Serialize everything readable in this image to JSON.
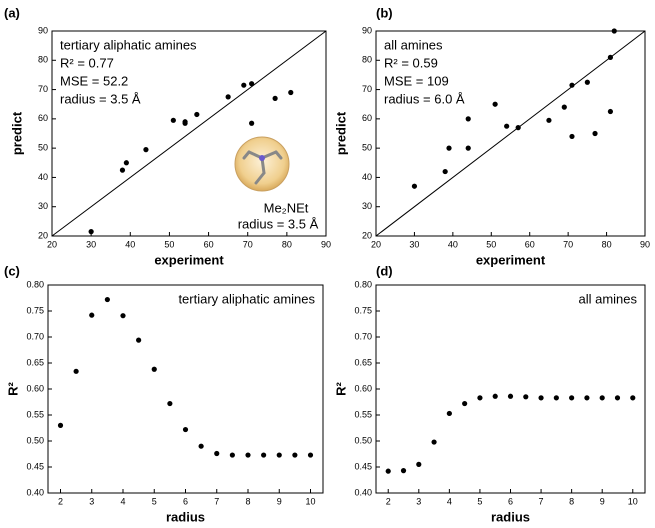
{
  "chart_data": [
    {
      "type": "scatter",
      "label": "(a)",
      "x_label": "experiment",
      "y_label": "predict",
      "x": [
        30,
        38,
        39,
        44,
        51,
        54,
        54,
        57,
        65,
        69,
        71,
        71,
        77,
        81
      ],
      "values": [
        21.5,
        42.5,
        45,
        49.5,
        59.5,
        58.5,
        59,
        61.5,
        67.5,
        71.5,
        72,
        58.5,
        67,
        69
      ],
      "color": "#000000",
      "diagonal": true,
      "xlim": [
        20,
        90
      ],
      "ylim": [
        20,
        90
      ],
      "xticks": [
        20,
        30,
        40,
        50,
        60,
        70,
        80,
        90
      ],
      "yticks": [
        20,
        30,
        40,
        50,
        60,
        70,
        80,
        90
      ],
      "annotations": [
        "tertiary aliphatic amines",
        "R² = 0.77",
        "MSE = 52.2",
        "radius = 3.5 Å",
        "Me₂NEt",
        "radius = 3.5 Å"
      ]
    },
    {
      "type": "scatter",
      "label": "(b)",
      "x_label": "experiment",
      "y_label": "predict",
      "x": [
        30,
        38,
        39,
        44,
        44,
        51,
        54,
        57,
        65,
        69,
        71,
        71,
        75,
        77,
        81,
        81,
        82
      ],
      "values": [
        37,
        42,
        50,
        60,
        50,
        65,
        57.5,
        57,
        59.5,
        64,
        71.5,
        54,
        72.5,
        55,
        81,
        62.5,
        90
      ],
      "color": "#000000",
      "diagonal": true,
      "xlim": [
        20,
        90
      ],
      "ylim": [
        20,
        90
      ],
      "xticks": [
        20,
        30,
        40,
        50,
        60,
        70,
        80,
        90
      ],
      "yticks": [
        20,
        30,
        40,
        50,
        60,
        70,
        80,
        90
      ],
      "annotations": [
        "all amines",
        "R² = 0.59",
        "MSE = 109",
        "radius = 6.0 Å"
      ]
    },
    {
      "type": "scatter",
      "label": "(c)",
      "x_label": "radius",
      "y_label": "R²",
      "x": [
        2,
        2.5,
        3,
        3.5,
        4,
        4.5,
        5,
        5.5,
        6,
        6.5,
        7,
        7.5,
        8,
        8.5,
        9,
        9.5,
        10
      ],
      "values": [
        0.53,
        0.634,
        0.742,
        0.772,
        0.741,
        0.694,
        0.638,
        0.572,
        0.522,
        0.49,
        0.476,
        0.473,
        0.473,
        0.473,
        0.473,
        0.473,
        0.473
      ],
      "color": "#000000",
      "diagonal": false,
      "xlim": [
        1.6,
        10.4
      ],
      "ylim": [
        0.4,
        0.8
      ],
      "xticks": [
        2,
        3,
        4,
        5,
        6,
        7,
        8,
        9,
        10
      ],
      "yticks": [
        {
          "value": 0.4,
          "label": "0.40"
        },
        0.45,
        {
          "value": 0.5,
          "label": "0.50"
        },
        0.55,
        {
          "value": 0.6,
          "label": "0.60"
        },
        0.65,
        {
          "value": 0.7,
          "label": "0.70"
        },
        0.75,
        {
          "value": 0.8,
          "label": "0.80"
        }
      ],
      "annotations": [
        "tertiary aliphatic amines"
      ]
    },
    {
      "type": "scatter",
      "label": "(d)",
      "x_label": "radius",
      "y_label": "R²",
      "x": [
        2,
        2.5,
        3,
        3.5,
        4,
        4.5,
        5,
        5.5,
        6,
        6.5,
        7,
        7.5,
        8,
        8.5,
        9,
        9.5,
        10
      ],
      "values": [
        0.442,
        0.443,
        0.455,
        0.498,
        0.553,
        0.572,
        0.583,
        0.586,
        0.586,
        0.585,
        0.583,
        0.583,
        0.583,
        0.583,
        0.583,
        0.583,
        0.583
      ],
      "color": "#000000",
      "diagonal": false,
      "xlim": [
        1.6,
        10.4
      ],
      "ylim": [
        0.4,
        0.8
      ],
      "xticks": [
        2,
        3,
        4,
        5,
        6,
        7,
        8,
        9,
        10
      ],
      "yticks": [
        {
          "value": 0.4,
          "label": "0.40"
        },
        0.45,
        {
          "value": 0.5,
          "label": "0.50"
        },
        0.55,
        {
          "value": 0.6,
          "label": "0.60"
        },
        0.65,
        {
          "value": 0.7,
          "label": "0.70"
        },
        0.75,
        {
          "value": 0.8,
          "label": "0.80"
        }
      ],
      "annotations": [
        "all amines"
      ]
    }
  ]
}
